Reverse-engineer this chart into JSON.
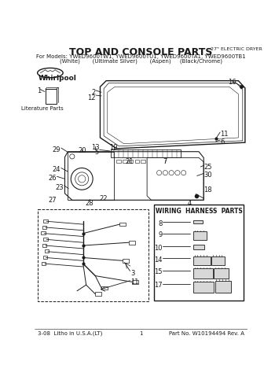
{
  "title": "TOP AND CONSOLE PARTS",
  "dryer_type": "27\" ELECTRIC DRYER",
  "subtitle": "For Models: YWED9600TW1, YWED9600TU1, YWED9600TA1, YWED9600TB1",
  "subtitle2": "(White)       (Ultimate Silver)       (Aspen)     (Black/Chrome)",
  "whirlpool": "Whirlpool",
  "literature_label": "Literature Parts",
  "wiring_harness_title": "WIRING  HARNESS  PARTS",
  "footer_left": "3-08  Litho in U.S.A.(LT)",
  "footer_center": "1",
  "footer_right": "Part No. W10194494 Rev. A",
  "bg": "#ffffff",
  "fg": "#1a1a1a",
  "title_fs": 9,
  "body_fs": 5.5,
  "label_fs": 6.0,
  "footer_fs": 5.0
}
